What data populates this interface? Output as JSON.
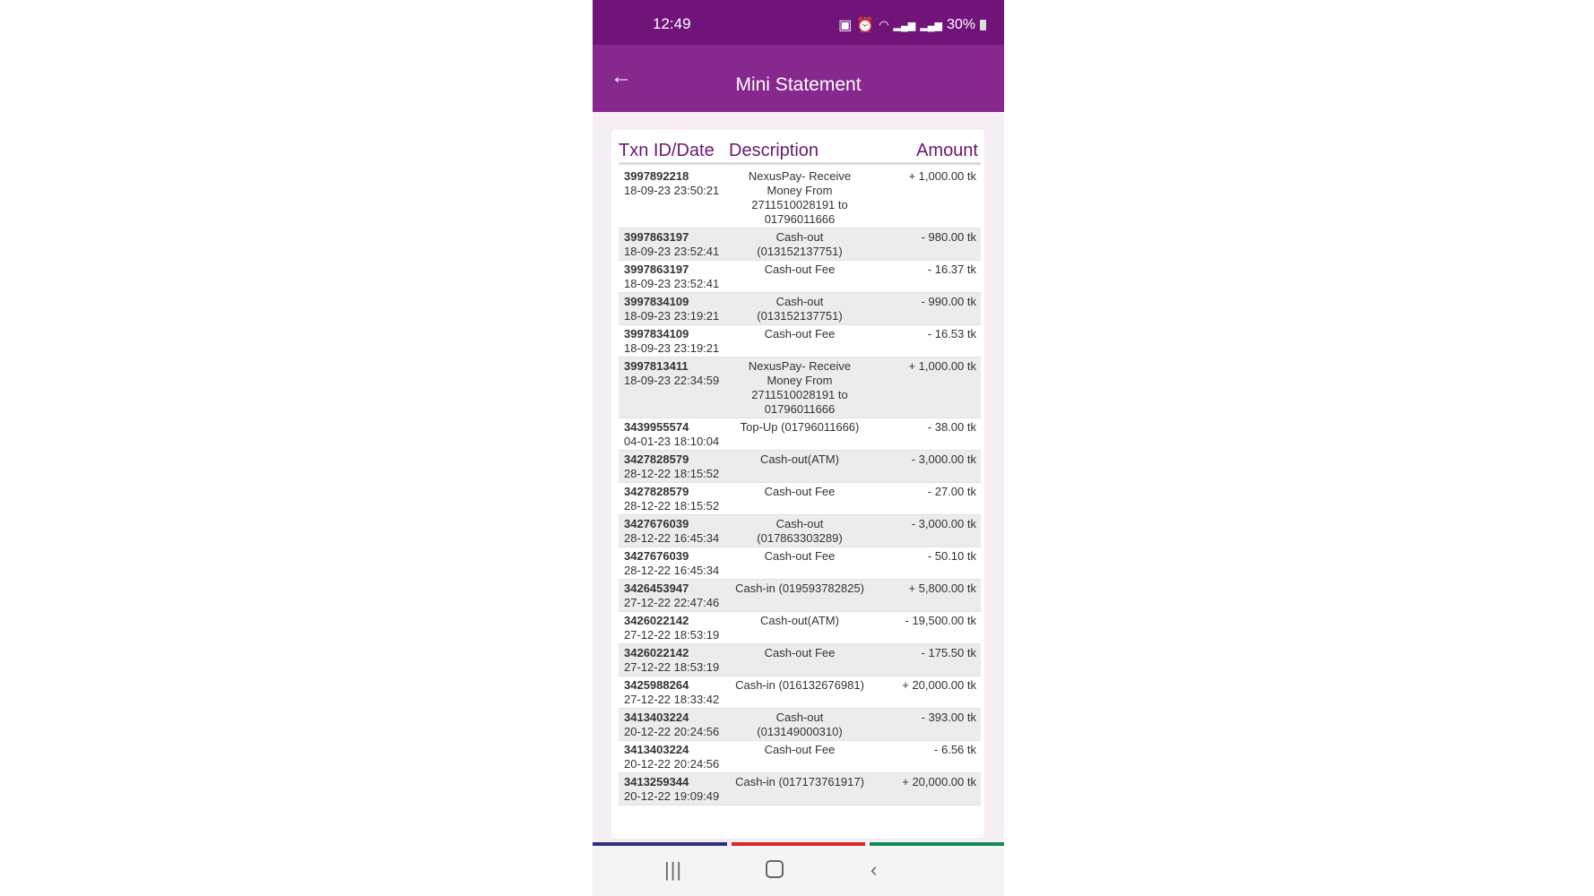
{
  "status_bar": {
    "time": "12:49",
    "battery": "30%"
  },
  "app_bar": {
    "title": "Mini Statement"
  },
  "table": {
    "headers": [
      "Txn ID/Date",
      "Description",
      "Amount"
    ],
    "rows": [
      {
        "id": "3997892218",
        "date": "18-09-23 23:50:21",
        "desc": "NexusPay- Receive Money From 2711510028191 to 01796011666",
        "amount": "+ 1,000.00 tk"
      },
      {
        "id": "3997863197",
        "date": "18-09-23 23:52:41",
        "desc": "Cash-out (013152137751)",
        "amount": "- 980.00 tk"
      },
      {
        "id": "3997863197",
        "date": "18-09-23 23:52:41",
        "desc": "Cash-out Fee",
        "amount": "- 16.37 tk"
      },
      {
        "id": "3997834109",
        "date": "18-09-23 23:19:21",
        "desc": "Cash-out (013152137751)",
        "amount": "- 990.00 tk"
      },
      {
        "id": "3997834109",
        "date": "18-09-23 23:19:21",
        "desc": "Cash-out Fee",
        "amount": "- 16.53 tk"
      },
      {
        "id": "3997813411",
        "date": "18-09-23 22:34:59",
        "desc": "NexusPay- Receive Money From 2711510028191 to 01796011666",
        "amount": "+ 1,000.00 tk"
      },
      {
        "id": "3439955574",
        "date": "04-01-23 18:10:04",
        "desc": "Top-Up (01796011666)",
        "amount": "- 38.00 tk"
      },
      {
        "id": "3427828579",
        "date": "28-12-22 18:15:52",
        "desc": "Cash-out(ATM)",
        "amount": "- 3,000.00 tk"
      },
      {
        "id": "3427828579",
        "date": "28-12-22 18:15:52",
        "desc": "Cash-out Fee",
        "amount": "- 27.00 tk"
      },
      {
        "id": "3427676039",
        "date": "28-12-22 16:45:34",
        "desc": "Cash-out (017863303289)",
        "amount": "- 3,000.00 tk"
      },
      {
        "id": "3427676039",
        "date": "28-12-22 16:45:34",
        "desc": "Cash-out Fee",
        "amount": "- 50.10 tk"
      },
      {
        "id": "3426453947",
        "date": "27-12-22 22:47:46",
        "desc": "Cash-in (019593782825)",
        "amount": "+ 5,800.00 tk"
      },
      {
        "id": "3426022142",
        "date": "27-12-22 18:53:19",
        "desc": "Cash-out(ATM)",
        "amount": "- 19,500.00 tk"
      },
      {
        "id": "3426022142",
        "date": "27-12-22 18:53:19",
        "desc": "Cash-out Fee",
        "amount": "- 175.50 tk"
      },
      {
        "id": "3425988264",
        "date": "27-12-22 18:33:42",
        "desc": "Cash-in (016132676981)",
        "amount": "+ 20,000.00 tk"
      },
      {
        "id": "3413403224",
        "date": "20-12-22 20:24:56",
        "desc": "Cash-out (013149000310)",
        "amount": "- 393.00 tk"
      },
      {
        "id": "3413403224",
        "date": "20-12-22 20:24:56",
        "desc": "Cash-out Fee",
        "amount": "- 6.56 tk"
      },
      {
        "id": "3413259344",
        "date": "20-12-22 19:09:49",
        "desc": "Cash-in (017173761917)",
        "amount": "+ 20,000.00 tk"
      }
    ]
  },
  "colors": {
    "status_bar": "#70147a",
    "app_bar": "#87288f",
    "header_text": "#6b1670",
    "bar_blue": "#2d2f7f",
    "bar_red": "#d8262f",
    "bar_green": "#138a56"
  },
  "nav": {
    "icons": [
      "recent-apps-icon",
      "home-icon",
      "back-icon"
    ]
  }
}
